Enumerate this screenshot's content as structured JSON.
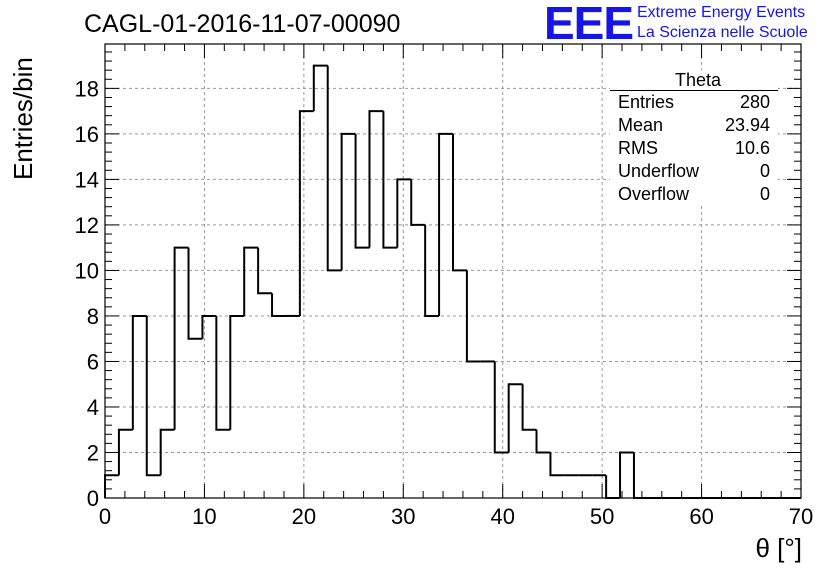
{
  "title": "CAGL-01-2016-11-07-00090",
  "logo": {
    "mark": "EEE",
    "line1": "Extreme Energy Events",
    "line2": "La Scienza nelle Scuole"
  },
  "stats_box": {
    "title": "Theta",
    "rows": [
      {
        "label": "Entries",
        "value": "280"
      },
      {
        "label": "Mean",
        "value": "23.94"
      },
      {
        "label": "RMS",
        "value": "10.6"
      },
      {
        "label": "Underflow",
        "value": "0"
      },
      {
        "label": "Overflow",
        "value": "0"
      }
    ]
  },
  "chart_data": {
    "type": "bar",
    "histogram": true,
    "title": "CAGL-01-2016-11-07-00090",
    "xlabel": "θ [°]",
    "ylabel": "Entries/bin",
    "xlim": [
      0,
      70
    ],
    "ylim": [
      0,
      19.95
    ],
    "bin_width": 1.4,
    "values": [
      1,
      3,
      8,
      1,
      3,
      11,
      7,
      8,
      3,
      8,
      11,
      9,
      8,
      8,
      17,
      19,
      10,
      16,
      11,
      17,
      11,
      14,
      12,
      8,
      16,
      10,
      6,
      6,
      2,
      5,
      3,
      2,
      1,
      1,
      1,
      1,
      0,
      2,
      0,
      0,
      0,
      0,
      0,
      0,
      0,
      0,
      0,
      0,
      0,
      0
    ],
    "x_ticks": [
      0,
      10,
      20,
      30,
      40,
      50,
      60,
      70
    ],
    "y_ticks": [
      0,
      2,
      4,
      6,
      8,
      10,
      12,
      14,
      16,
      18
    ],
    "grid": true,
    "line_color": "#000000",
    "grid_color": "#999999",
    "legend": "none"
  }
}
